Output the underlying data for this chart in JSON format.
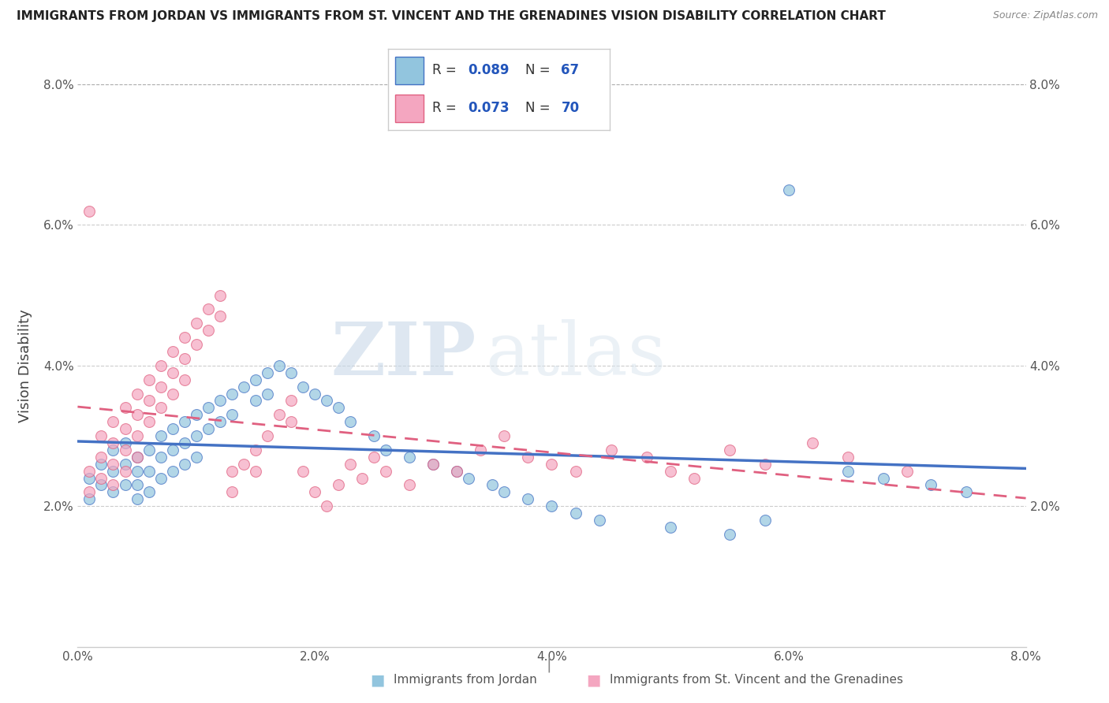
{
  "title": "IMMIGRANTS FROM JORDAN VS IMMIGRANTS FROM ST. VINCENT AND THE GRENADINES VISION DISABILITY CORRELATION CHART",
  "source": "Source: ZipAtlas.com",
  "xlabel_jordan": "Immigrants from Jordan",
  "xlabel_stvincent": "Immigrants from St. Vincent and the Grenadines",
  "ylabel": "Vision Disability",
  "xlim": [
    0.0,
    0.08
  ],
  "ylim": [
    0.0,
    0.08
  ],
  "x_ticks": [
    0.0,
    0.02,
    0.04,
    0.06,
    0.08
  ],
  "y_ticks": [
    0.0,
    0.02,
    0.04,
    0.06,
    0.08
  ],
  "x_tick_labels": [
    "0.0%",
    "2.0%",
    "4.0%",
    "6.0%",
    "8.0%"
  ],
  "y_tick_labels": [
    "",
    "2.0%",
    "4.0%",
    "6.0%",
    "8.0%"
  ],
  "color_jordan": "#92c5de",
  "color_stvincent": "#f4a6c0",
  "trendline_color_jordan": "#4472c4",
  "trendline_color_stvincent": "#e06080",
  "watermark_zip": "ZIP",
  "watermark_atlas": "atlas",
  "background_color": "#ffffff",
  "jordan_x": [
    0.001,
    0.001,
    0.002,
    0.002,
    0.003,
    0.003,
    0.003,
    0.004,
    0.004,
    0.004,
    0.005,
    0.005,
    0.005,
    0.005,
    0.006,
    0.006,
    0.006,
    0.007,
    0.007,
    0.007,
    0.008,
    0.008,
    0.008,
    0.009,
    0.009,
    0.009,
    0.01,
    0.01,
    0.01,
    0.011,
    0.011,
    0.012,
    0.012,
    0.013,
    0.013,
    0.014,
    0.015,
    0.015,
    0.016,
    0.016,
    0.017,
    0.018,
    0.019,
    0.02,
    0.021,
    0.022,
    0.023,
    0.025,
    0.026,
    0.028,
    0.03,
    0.032,
    0.033,
    0.035,
    0.036,
    0.038,
    0.04,
    0.042,
    0.044,
    0.05,
    0.055,
    0.058,
    0.06,
    0.065,
    0.068,
    0.072,
    0.075
  ],
  "jordan_y": [
    0.024,
    0.021,
    0.026,
    0.023,
    0.028,
    0.025,
    0.022,
    0.029,
    0.026,
    0.023,
    0.027,
    0.025,
    0.023,
    0.021,
    0.028,
    0.025,
    0.022,
    0.03,
    0.027,
    0.024,
    0.031,
    0.028,
    0.025,
    0.032,
    0.029,
    0.026,
    0.033,
    0.03,
    0.027,
    0.034,
    0.031,
    0.035,
    0.032,
    0.036,
    0.033,
    0.037,
    0.038,
    0.035,
    0.039,
    0.036,
    0.04,
    0.039,
    0.037,
    0.036,
    0.035,
    0.034,
    0.032,
    0.03,
    0.028,
    0.027,
    0.026,
    0.025,
    0.024,
    0.023,
    0.022,
    0.021,
    0.02,
    0.019,
    0.018,
    0.017,
    0.016,
    0.018,
    0.065,
    0.025,
    0.024,
    0.023,
    0.022
  ],
  "stvincent_x": [
    0.001,
    0.001,
    0.001,
    0.002,
    0.002,
    0.002,
    0.003,
    0.003,
    0.003,
    0.003,
    0.004,
    0.004,
    0.004,
    0.004,
    0.005,
    0.005,
    0.005,
    0.005,
    0.006,
    0.006,
    0.006,
    0.007,
    0.007,
    0.007,
    0.008,
    0.008,
    0.008,
    0.009,
    0.009,
    0.009,
    0.01,
    0.01,
    0.011,
    0.011,
    0.012,
    0.012,
    0.013,
    0.013,
    0.014,
    0.015,
    0.015,
    0.016,
    0.017,
    0.018,
    0.018,
    0.019,
    0.02,
    0.021,
    0.022,
    0.023,
    0.024,
    0.025,
    0.026,
    0.028,
    0.03,
    0.032,
    0.034,
    0.036,
    0.038,
    0.04,
    0.042,
    0.045,
    0.048,
    0.05,
    0.052,
    0.055,
    0.058,
    0.062,
    0.065,
    0.07
  ],
  "stvincent_y": [
    0.025,
    0.022,
    0.062,
    0.03,
    0.027,
    0.024,
    0.032,
    0.029,
    0.026,
    0.023,
    0.034,
    0.031,
    0.028,
    0.025,
    0.036,
    0.033,
    0.03,
    0.027,
    0.038,
    0.035,
    0.032,
    0.04,
    0.037,
    0.034,
    0.042,
    0.039,
    0.036,
    0.044,
    0.041,
    0.038,
    0.046,
    0.043,
    0.048,
    0.045,
    0.05,
    0.047,
    0.025,
    0.022,
    0.026,
    0.028,
    0.025,
    0.03,
    0.033,
    0.035,
    0.032,
    0.025,
    0.022,
    0.02,
    0.023,
    0.026,
    0.024,
    0.027,
    0.025,
    0.023,
    0.026,
    0.025,
    0.028,
    0.03,
    0.027,
    0.026,
    0.025,
    0.028,
    0.027,
    0.025,
    0.024,
    0.028,
    0.026,
    0.029,
    0.027,
    0.025
  ]
}
